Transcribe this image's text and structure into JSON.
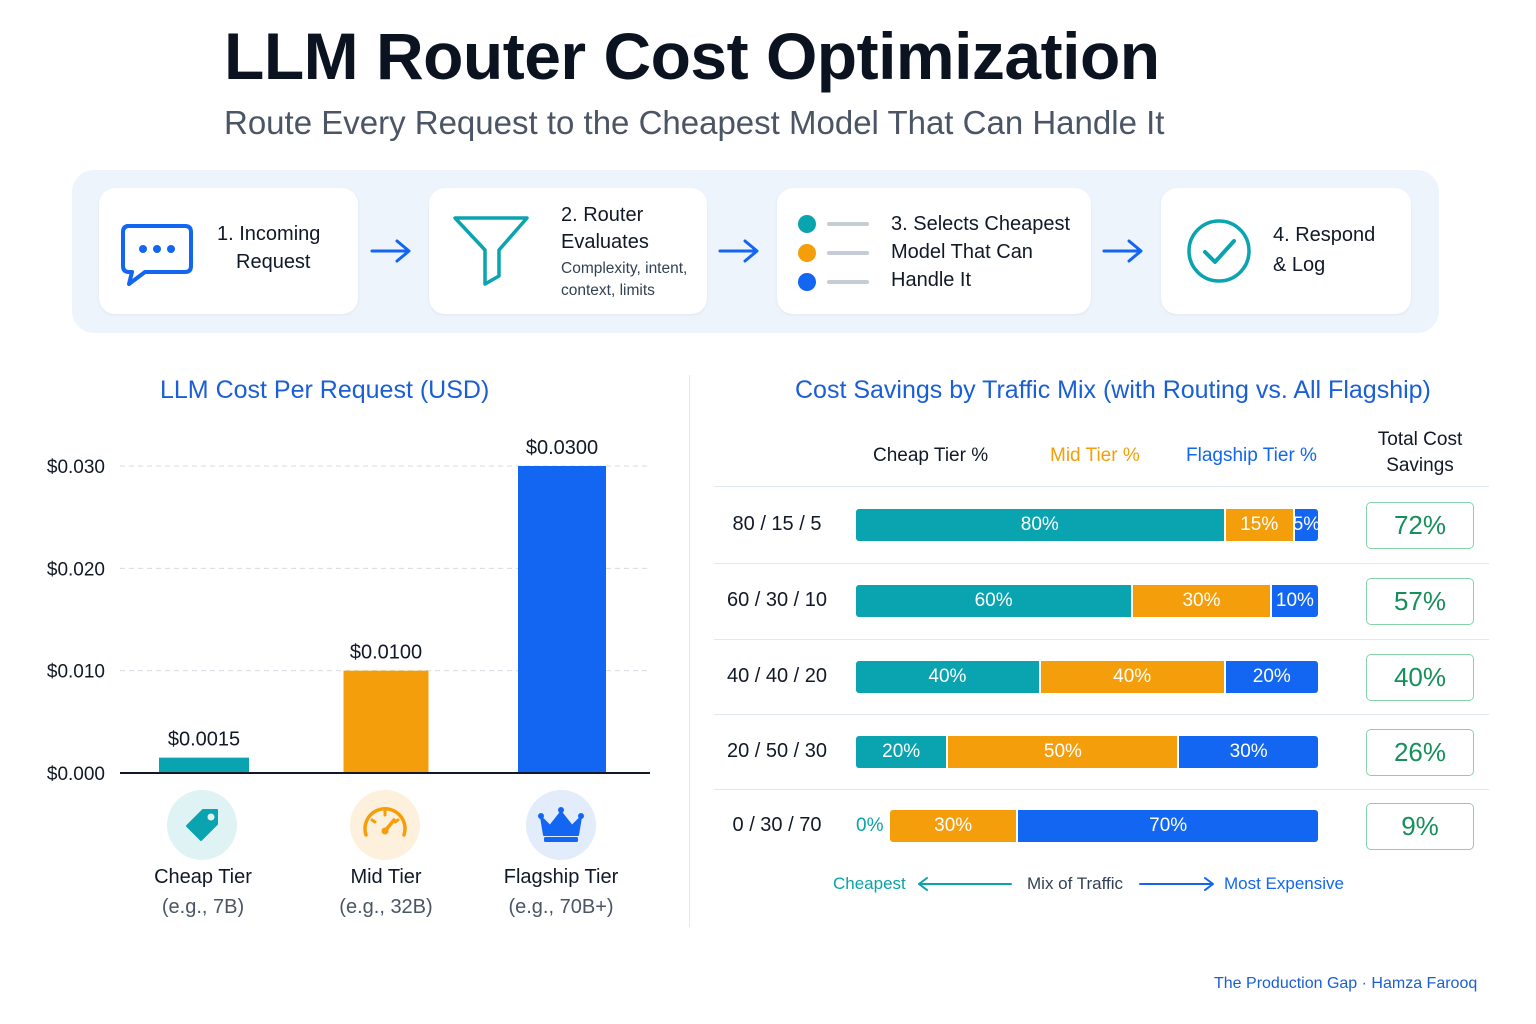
{
  "header": {
    "title": "LLM Router Cost Optimization",
    "subtitle": "Route Every Request to the Cheapest Model That Can Handle It"
  },
  "flow": {
    "steps": [
      {
        "line1": "1. Incoming",
        "line2": "Request",
        "icon": "chat-bubble-icon"
      },
      {
        "line1": "2. Router",
        "line2": "Evaluates",
        "detail1": "Complexity, intent,",
        "detail2": "context, limits",
        "icon": "funnel-icon"
      },
      {
        "line1": "3. Selects Cheapest",
        "line2": "Model That Can",
        "line3": "Handle It",
        "icon": "tier-list-icon"
      },
      {
        "line1": "4. Respond",
        "line2": "& Log",
        "icon": "check-circle-icon"
      }
    ],
    "arrow_icon": "arrow-right-icon"
  },
  "colors": {
    "cheap": "#0aa3b0",
    "mid": "#f59e0b",
    "flagship": "#1266f1",
    "accent_blue": "#1a5fd6",
    "savings_green": "#15905a"
  },
  "cost_chart": {
    "title": "LLM Cost Per Request (USD)",
    "tiers": [
      {
        "name": "Cheap Tier",
        "example": "(e.g., 7B)",
        "icon": "price-tag-icon"
      },
      {
        "name": "Mid Tier",
        "example": "(e.g., 32B)",
        "icon": "speedometer-icon"
      },
      {
        "name": "Flagship Tier",
        "example": "(e.g., 70B+)",
        "icon": "crown-icon"
      }
    ]
  },
  "mix_chart": {
    "title": "Cost Savings by Traffic Mix (with Routing vs. All Flagship)",
    "headers": {
      "cheap": "Cheap Tier %",
      "mid": "Mid Tier %",
      "flagship": "Flagship Tier %",
      "savings_line1": "Total Cost",
      "savings_line2": "Savings"
    },
    "rows": [
      {
        "label": "80 / 15 / 5",
        "cheap": 80,
        "mid": 15,
        "flagship": 5,
        "cheap_label": "80%",
        "mid_label": "15%",
        "flagship_label": "5%",
        "savings": "72%"
      },
      {
        "label": "60 / 30 / 10",
        "cheap": 60,
        "mid": 30,
        "flagship": 10,
        "cheap_label": "60%",
        "mid_label": "30%",
        "flagship_label": "10%",
        "savings": "57%"
      },
      {
        "label": "40 / 40 / 20",
        "cheap": 40,
        "mid": 40,
        "flagship": 20,
        "cheap_label": "40%",
        "mid_label": "40%",
        "flagship_label": "20%",
        "savings": "40%"
      },
      {
        "label": "20 / 50 / 30",
        "cheap": 20,
        "mid": 50,
        "flagship": 30,
        "cheap_label": "20%",
        "mid_label": "50%",
        "flagship_label": "30%",
        "savings": "26%"
      },
      {
        "label": "0 / 30 / 70",
        "cheap": 0,
        "mid": 30,
        "flagship": 70,
        "cheap_label": "0%",
        "mid_label": "30%",
        "flagship_label": "70%",
        "savings": "9%"
      }
    ],
    "legend": {
      "left": "Cheapest",
      "center": "Mix of Traffic",
      "right": "Most Expensive"
    }
  },
  "chart_data": [
    {
      "type": "bar",
      "title": "LLM Cost Per Request (USD)",
      "categories": [
        "Cheap Tier",
        "Mid Tier",
        "Flagship Tier"
      ],
      "values": [
        0.0015,
        0.01,
        0.03
      ],
      "data_labels": [
        "$0.0015",
        "$0.0100",
        "$0.0300"
      ],
      "yticks": [
        0,
        0.01,
        0.02,
        0.03
      ],
      "ytick_labels": [
        "$0.000",
        "$0.010",
        "$0.020",
        "$0.030"
      ],
      "ylim": [
        0,
        0.03
      ],
      "grid": true,
      "xlabel": "",
      "ylabel": ""
    },
    {
      "type": "bar",
      "stacked": true,
      "orientation": "horizontal",
      "title": "Cost Savings by Traffic Mix (with Routing vs. All Flagship)",
      "categories": [
        "80 / 15 / 5",
        "60 / 30 / 10",
        "40 / 40 / 20",
        "20 / 50 / 30",
        "0 / 30 / 70"
      ],
      "series": [
        {
          "name": "Cheap Tier %",
          "values": [
            80,
            60,
            40,
            20,
            0
          ]
        },
        {
          "name": "Mid Tier %",
          "values": [
            15,
            30,
            40,
            50,
            30
          ]
        },
        {
          "name": "Flagship Tier %",
          "values": [
            5,
            10,
            20,
            30,
            70
          ]
        }
      ],
      "total_cost_savings": [
        72,
        57,
        40,
        26,
        9
      ],
      "xlim": [
        0,
        100
      ]
    }
  ],
  "footer": {
    "credit": "The Production Gap · Hamza Farooq"
  }
}
